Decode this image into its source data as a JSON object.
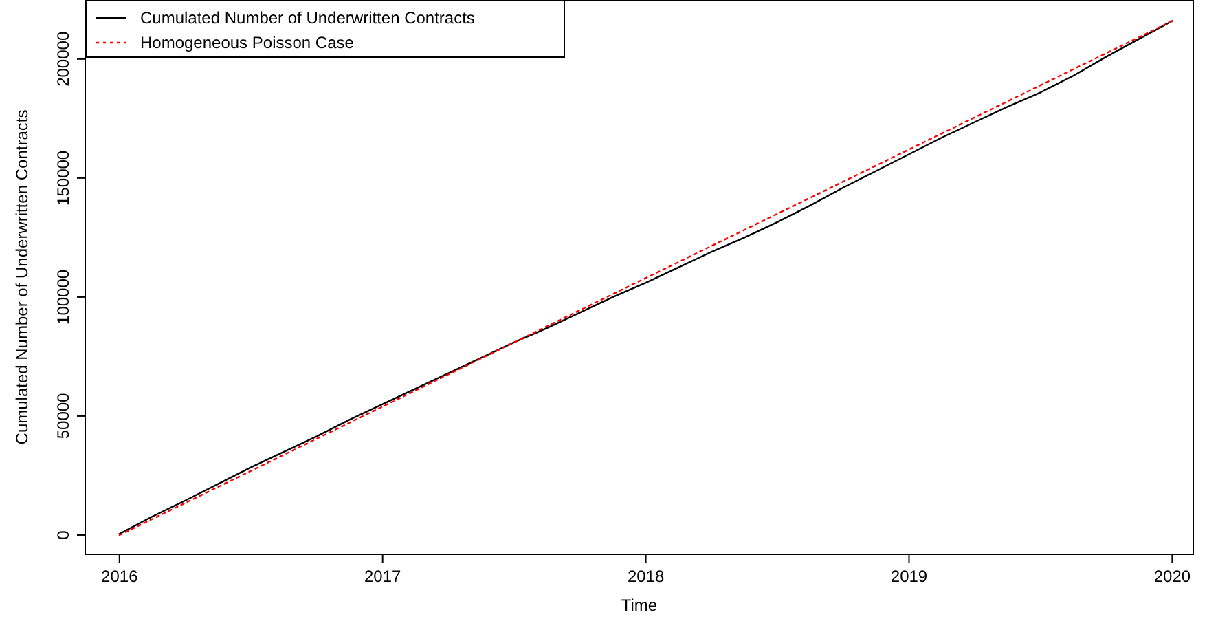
{
  "chart_data": {
    "type": "line",
    "xlabel": "Time",
    "ylabel": "Cumulated Number of Underwritten Contracts",
    "xlim": [
      2015.87,
      2020.08
    ],
    "ylim": [
      -8100,
      224800
    ],
    "xticks": [
      2016,
      2017,
      2018,
      2019,
      2020
    ],
    "yticks": [
      0,
      50000,
      100000,
      150000,
      200000
    ],
    "legend": "top left",
    "grid": false,
    "series": [
      {
        "name": "Cumulated Number of Underwritten Contracts",
        "color": "#000000",
        "line_style": "solid",
        "x": [
          2016,
          2016.125,
          2016.25,
          2016.375,
          2016.5,
          2016.625,
          2016.75,
          2016.875,
          2017,
          2017.125,
          2017.25,
          2017.375,
          2017.5,
          2017.625,
          2017.75,
          2017.875,
          2018,
          2018.125,
          2018.25,
          2018.375,
          2018.5,
          2018.625,
          2018.75,
          2018.875,
          2019,
          2019.125,
          2019.25,
          2019.375,
          2019.5,
          2019.625,
          2019.75,
          2019.875,
          2020
        ],
        "values": [
          500,
          7800,
          14500,
          21500,
          28500,
          35000,
          41500,
          48500,
          55000,
          61500,
          68000,
          74500,
          81000,
          87000,
          93500,
          100000,
          106000,
          112500,
          119000,
          125000,
          131500,
          138500,
          146000,
          153000,
          160000,
          167000,
          173500,
          180000,
          186000,
          193000,
          201000,
          208500,
          216000
        ]
      },
      {
        "name": "Homogeneous Poisson Case",
        "color": "#ff0000",
        "line_style": "dotted",
        "x": [
          2016,
          2020
        ],
        "values": [
          0,
          216000
        ]
      }
    ]
  }
}
